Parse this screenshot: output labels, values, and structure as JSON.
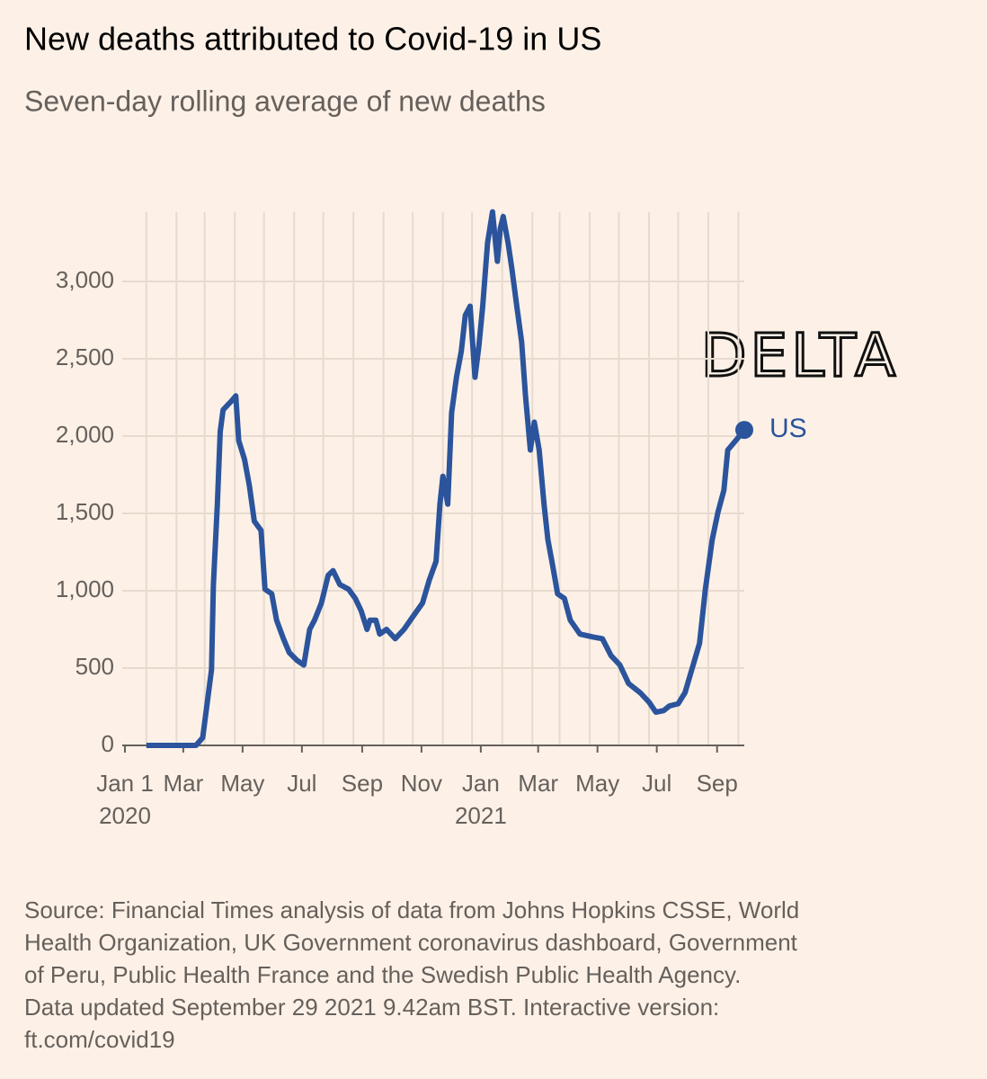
{
  "chart_data": {
    "type": "line",
    "title": "New deaths attributed to Covid-19 in US",
    "subtitle": "Seven-day rolling average of new deaths",
    "x": [
      "2020-01-23",
      "2020-03-14",
      "2020-03-21",
      "2020-03-30",
      "2020-04-01",
      "2020-04-05",
      "2020-04-08",
      "2020-04-11",
      "2020-04-20",
      "2020-04-24",
      "2020-04-27",
      "2020-05-03",
      "2020-05-08",
      "2020-05-13",
      "2020-05-20",
      "2020-05-24",
      "2020-05-31",
      "2020-06-05",
      "2020-06-12",
      "2020-06-18",
      "2020-06-26",
      "2020-07-03",
      "2020-07-09",
      "2020-07-14",
      "2020-07-21",
      "2020-07-28",
      "2020-08-02",
      "2020-08-09",
      "2020-08-18",
      "2020-08-25",
      "2020-08-31",
      "2020-09-06",
      "2020-09-09",
      "2020-09-15",
      "2020-09-19",
      "2020-09-26",
      "2020-10-05",
      "2020-10-14",
      "2020-10-24",
      "2020-11-02",
      "2020-11-09",
      "2020-11-16",
      "2020-11-20",
      "2020-11-23",
      "2020-11-28",
      "2020-12-02",
      "2020-12-07",
      "2020-12-12",
      "2020-12-16",
      "2020-12-21",
      "2020-12-26",
      "2020-12-30",
      "2021-01-03",
      "2021-01-08",
      "2021-01-13",
      "2021-01-18",
      "2021-01-21",
      "2021-01-24",
      "2021-01-29",
      "2021-02-02",
      "2021-02-07",
      "2021-02-12",
      "2021-02-16",
      "2021-02-21",
      "2021-02-25",
      "2021-03-02",
      "2021-03-07",
      "2021-03-11",
      "2021-03-16",
      "2021-03-21",
      "2021-03-28",
      "2021-04-03",
      "2021-04-13",
      "2021-04-27",
      "2021-05-06",
      "2021-05-15",
      "2021-05-24",
      "2021-06-02",
      "2021-06-14",
      "2021-06-23",
      "2021-06-30",
      "2021-07-08",
      "2021-07-14",
      "2021-07-23",
      "2021-07-30",
      "2021-08-06",
      "2021-08-14",
      "2021-08-20",
      "2021-08-27",
      "2021-09-02",
      "2021-09-08",
      "2021-09-12",
      "2021-09-20",
      "2021-09-29"
    ],
    "series": [
      {
        "name": "US",
        "color": "#2b549c",
        "values": [
          0,
          0,
          50,
          490,
          1040,
          1560,
          2030,
          2170,
          2230,
          2260,
          1970,
          1850,
          1680,
          1450,
          1390,
          1010,
          980,
          810,
          690,
          600,
          550,
          520,
          750,
          810,
          920,
          1100,
          1130,
          1040,
          1010,
          950,
          870,
          750,
          810,
          810,
          720,
          750,
          690,
          750,
          840,
          920,
          1070,
          1190,
          1560,
          1740,
          1560,
          2150,
          2380,
          2550,
          2780,
          2840,
          2380,
          2580,
          2840,
          3250,
          3450,
          3130,
          3340,
          3420,
          3250,
          3080,
          2840,
          2610,
          2260,
          1910,
          2090,
          1910,
          1560,
          1330,
          1160,
          980,
          950,
          810,
          720,
          700,
          690,
          580,
          520,
          400,
          340,
          280,
          215,
          225,
          255,
          270,
          340,
          490,
          660,
          1010,
          1330,
          1510,
          1650,
          1910,
          1970,
          2040
        ]
      }
    ],
    "xlim": [
      "2020-01-01",
      "2021-09-29"
    ],
    "ylim": [
      0,
      3450
    ],
    "yticks": [
      0,
      500,
      {
        "value": 1000,
        "label": "1,000"
      },
      {
        "value": 1500,
        "label": "1,500"
      },
      {
        "value": 2000,
        "label": "2,000"
      },
      {
        "value": 2500,
        "label": "2,500"
      },
      {
        "value": 3000,
        "label": "3,000"
      }
    ],
    "xticks": [
      {
        "value": "2020-01-01",
        "label": "Jan 1",
        "year": "2020"
      },
      {
        "value": "2020-03-01",
        "label": "Mar"
      },
      {
        "value": "2020-05-01",
        "label": "May"
      },
      {
        "value": "2020-07-01",
        "label": "Jul"
      },
      {
        "value": "2020-09-01",
        "label": "Sep"
      },
      {
        "value": "2020-11-01",
        "label": "Nov"
      },
      {
        "value": "2021-01-01",
        "label": "Jan",
        "year": "2021"
      },
      {
        "value": "2021-03-01",
        "label": "Mar"
      },
      {
        "value": "2021-05-01",
        "label": "May"
      },
      {
        "value": "2021-07-01",
        "label": "Jul"
      },
      {
        "value": "2021-09-01",
        "label": "Sep"
      }
    ],
    "x_grid": [
      "2020-01-23",
      "2020-02-23",
      "2020-03-23",
      "2020-04-23",
      "2020-05-23",
      "2020-06-23",
      "2020-07-23",
      "2020-08-23",
      "2020-09-23",
      "2020-10-23",
      "2020-11-23",
      "2020-12-23",
      "2021-01-23",
      "2021-02-23",
      "2021-03-23",
      "2021-04-23",
      "2021-05-23",
      "2021-06-23",
      "2021-07-23",
      "2021-08-23",
      "2021-09-23"
    ],
    "grid": true,
    "annotation": "DELTA",
    "source": [
      "Source: Financial Times analysis of data from Johns Hopkins CSSE, World",
      "Health Organization, UK Government coronavirus dashboard, Government",
      "of Peru, Public Health France and the Swedish Public Health Agency.",
      "Data updated September 29 2021 9.42am BST. Interactive version:",
      "ft.com/covid19"
    ]
  }
}
